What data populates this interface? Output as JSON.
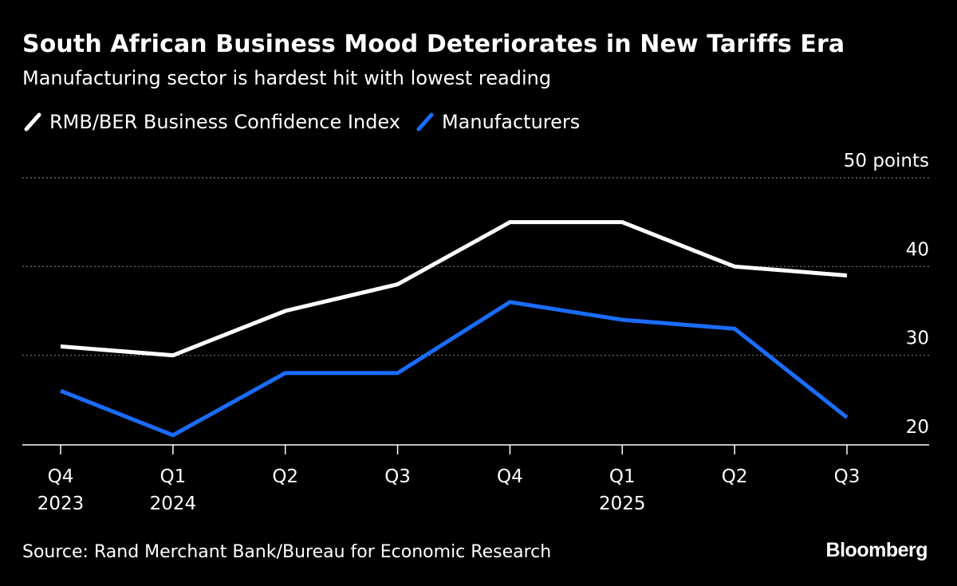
{
  "chart_data": {
    "type": "line",
    "title": "South African Business Mood Deteriorates in New Tariffs Era",
    "subtitle": "Manufacturing sector is hardest hit with lowest reading",
    "categories": [
      {
        "quarter": "Q4",
        "year": "2023"
      },
      {
        "quarter": "Q1",
        "year": "2024"
      },
      {
        "quarter": "Q2",
        "year": ""
      },
      {
        "quarter": "Q3",
        "year": ""
      },
      {
        "quarter": "Q4",
        "year": ""
      },
      {
        "quarter": "Q1",
        "year": "2025"
      },
      {
        "quarter": "Q2",
        "year": ""
      },
      {
        "quarter": "Q3",
        "year": ""
      }
    ],
    "series": [
      {
        "name": "RMB/BER Business Confidence Index",
        "color": "#ffffff",
        "values": [
          31,
          30,
          35,
          38,
          45,
          45,
          40,
          39
        ]
      },
      {
        "name": "Manufacturers",
        "color": "#1a6dff",
        "values": [
          26,
          21,
          28,
          28,
          36,
          34,
          33,
          23
        ]
      }
    ],
    "ylim": [
      19,
      50
    ],
    "yticks": [
      {
        "value": 50,
        "label": "50 points"
      },
      {
        "value": 40,
        "label": "40"
      },
      {
        "value": 30,
        "label": "30"
      },
      {
        "value": 20,
        "label": "20"
      }
    ],
    "grid": true,
    "legend": "top-left",
    "xlabel": "",
    "ylabel": ""
  },
  "footer": {
    "source": "Source: Rand Merchant Bank/Bureau for Economic Research",
    "brand": "Bloomberg"
  }
}
